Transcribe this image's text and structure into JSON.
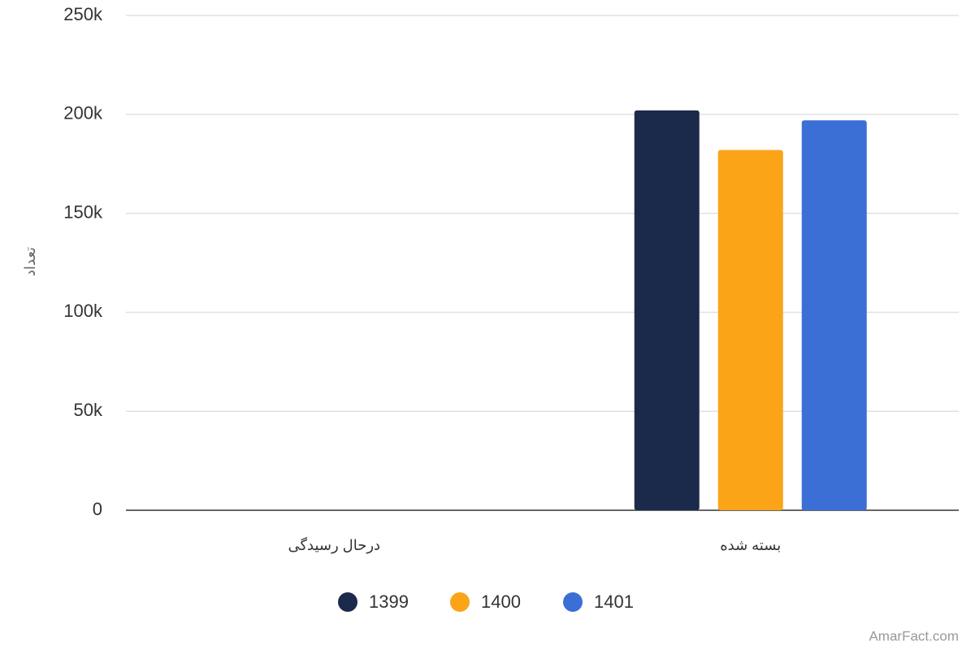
{
  "chart_data": {
    "type": "bar",
    "y_label": "تعداد",
    "watermark": "AmarFact.com",
    "categories": [
      "درحال رسیدگی",
      "بسته شده"
    ],
    "series": [
      {
        "name": "1399",
        "color": "#1b2a4b",
        "values": [
          0,
          202000
        ]
      },
      {
        "name": "1400",
        "color": "#fba418",
        "values": [
          0,
          182000
        ]
      },
      {
        "name": "1401",
        "color": "#3b6fd5",
        "values": [
          0,
          197000
        ]
      }
    ],
    "ylim": [
      0,
      250000
    ],
    "yticks": [
      0,
      {
        "value": 50000,
        "label": "50k"
      },
      {
        "value": 100000,
        "label": "100k"
      },
      {
        "value": 150000,
        "label": "150k"
      },
      {
        "value": 200000,
        "label": "200k"
      },
      {
        "value": 250000,
        "label": "250k"
      }
    ],
    "grid": true
  }
}
